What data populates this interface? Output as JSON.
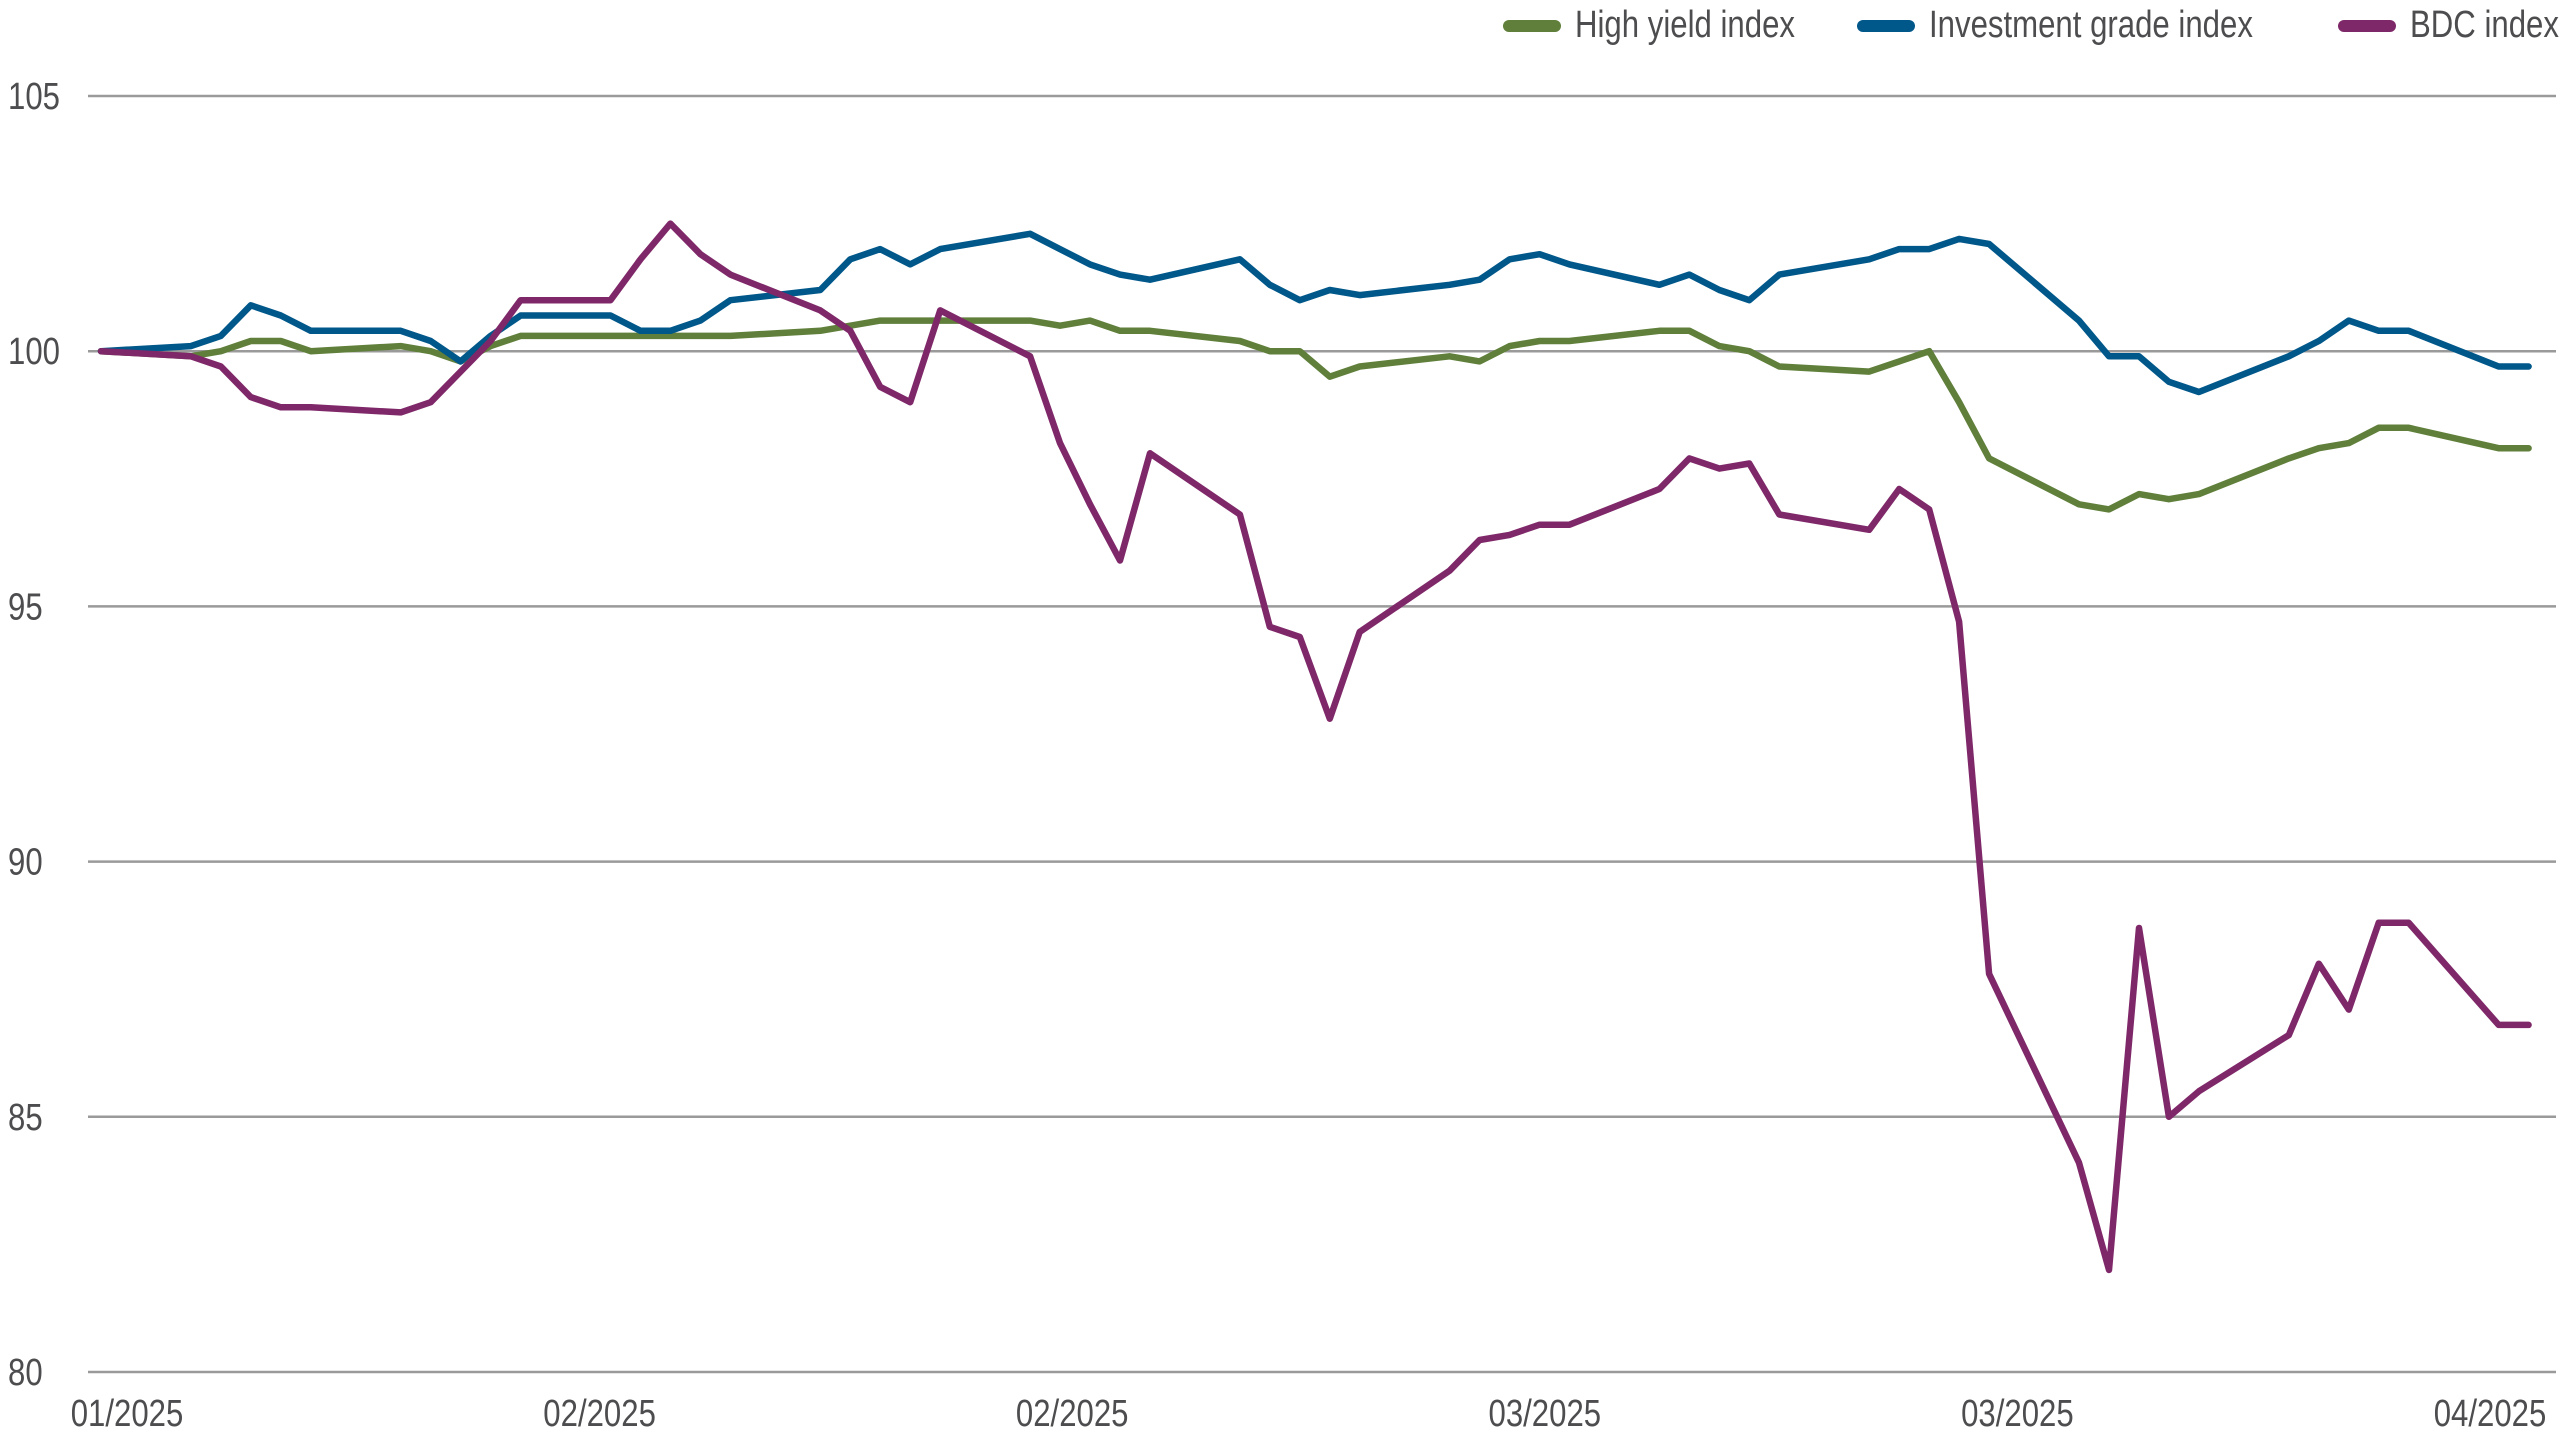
{
  "chart_data": {
    "type": "line",
    "title": "",
    "xlabel": "",
    "ylabel": "",
    "ylim": [
      80,
      105
    ],
    "yticks": [
      80,
      85,
      90,
      95,
      100,
      105
    ],
    "xtick_labels": [
      "01/2025",
      "02/2025",
      "02/2025",
      "03/2025",
      "03/2025",
      "04/2025"
    ],
    "grid": "horizontal",
    "legend_position": "top-right",
    "x": [
      "2025-01-24",
      "2025-01-27",
      "2025-01-28",
      "2025-01-29",
      "2025-01-30",
      "2025-01-31",
      "2025-02-03",
      "2025-02-04",
      "2025-02-05",
      "2025-02-06",
      "2025-02-07",
      "2025-02-10",
      "2025-02-11",
      "2025-02-12",
      "2025-02-13",
      "2025-02-14",
      "2025-02-17",
      "2025-02-18",
      "2025-02-19",
      "2025-02-20",
      "2025-02-21",
      "2025-02-24",
      "2025-02-25",
      "2025-02-26",
      "2025-02-27",
      "2025-02-28",
      "2025-03-03",
      "2025-03-04",
      "2025-03-05",
      "2025-03-06",
      "2025-03-07",
      "2025-03-10",
      "2025-03-11",
      "2025-03-12",
      "2025-03-13",
      "2025-03-14",
      "2025-03-17",
      "2025-03-18",
      "2025-03-19",
      "2025-03-20",
      "2025-03-21",
      "2025-03-24",
      "2025-03-25",
      "2025-03-26",
      "2025-03-27",
      "2025-03-28",
      "2025-03-31",
      "2025-04-01",
      "2025-04-02",
      "2025-04-03",
      "2025-04-04",
      "2025-04-07",
      "2025-04-08",
      "2025-04-09",
      "2025-04-10",
      "2025-04-11",
      "2025-04-14",
      "2025-04-15"
    ],
    "series": [
      {
        "name": "High yield index",
        "color": "#5f7f3a",
        "values": [
          100.0,
          99.9,
          100.0,
          100.2,
          100.2,
          100.0,
          100.1,
          100.0,
          99.8,
          100.1,
          100.3,
          100.3,
          100.3,
          100.3,
          100.3,
          100.3,
          100.4,
          100.5,
          100.6,
          100.6,
          100.6,
          100.6,
          100.5,
          100.6,
          100.4,
          100.4,
          100.2,
          100.0,
          100.0,
          99.5,
          99.7,
          99.9,
          99.8,
          100.1,
          100.2,
          100.2,
          100.4,
          100.4,
          100.1,
          100.0,
          99.7,
          99.6,
          99.8,
          100.0,
          99.0,
          97.9,
          97.0,
          96.9,
          97.2,
          97.1,
          97.2,
          97.9,
          98.1,
          98.2,
          98.5,
          98.5,
          98.1,
          98.1
        ]
      },
      {
        "name": "Investment grade index",
        "color": "#00578a",
        "values": [
          100.0,
          100.1,
          100.3,
          100.9,
          100.7,
          100.4,
          100.4,
          100.2,
          99.8,
          100.3,
          100.7,
          100.7,
          100.4,
          100.4,
          100.6,
          101.0,
          101.2,
          101.8,
          102.0,
          101.7,
          102.0,
          102.3,
          102.0,
          101.7,
          101.5,
          101.4,
          101.8,
          101.3,
          101.0,
          101.2,
          101.1,
          101.3,
          101.4,
          101.8,
          101.9,
          101.7,
          101.3,
          101.5,
          101.2,
          101.0,
          101.5,
          101.8,
          102.0,
          102.0,
          102.2,
          102.1,
          100.6,
          99.9,
          99.9,
          99.4,
          99.2,
          99.9,
          100.2,
          100.6,
          100.4,
          100.4,
          99.7,
          99.7
        ]
      },
      {
        "name": "BDC index",
        "color": "#7f2869",
        "values": [
          100.0,
          99.9,
          99.7,
          99.1,
          98.9,
          98.9,
          98.8,
          99.0,
          99.6,
          100.2,
          101.0,
          101.0,
          101.8,
          102.5,
          101.9,
          101.5,
          100.8,
          100.4,
          99.3,
          99.0,
          100.8,
          99.9,
          98.2,
          97.0,
          95.9,
          98.0,
          96.8,
          94.6,
          94.4,
          92.8,
          94.5,
          95.7,
          96.3,
          96.4,
          96.6,
          96.6,
          97.3,
          97.9,
          97.7,
          97.8,
          96.8,
          96.5,
          97.3,
          96.9,
          94.7,
          87.8,
          84.1,
          82.0,
          88.7,
          85.0,
          85.5,
          86.6,
          88.0,
          87.1,
          88.8,
          88.8,
          86.8,
          86.8
        ]
      }
    ]
  }
}
